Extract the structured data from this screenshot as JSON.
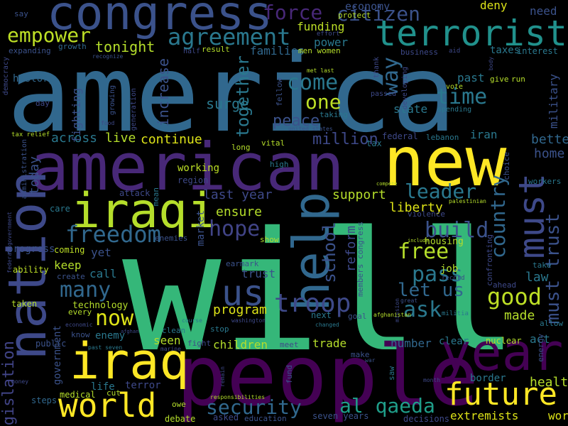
{
  "words": [
    {
      "text": "will",
      "color": "#35b779"
    },
    {
      "text": "america",
      "color": "#31688e"
    },
    {
      "text": "people",
      "color": "#440154"
    },
    {
      "text": "american",
      "color": "#482878"
    },
    {
      "text": "new",
      "color": "#fde725"
    },
    {
      "text": "nation",
      "color": "#3e4989"
    },
    {
      "text": "congress",
      "color": "#3b528b"
    },
    {
      "text": "terrorist",
      "color": "#21918c"
    },
    {
      "text": "year",
      "color": "#440154"
    },
    {
      "text": "iraqi",
      "color": "#b5de2b"
    },
    {
      "text": "iraq",
      "color": "#fde725"
    },
    {
      "text": "help",
      "color": "#31688e"
    },
    {
      "text": "must",
      "color": "#3e4989"
    },
    {
      "text": "world",
      "color": "#fde725"
    },
    {
      "text": "future",
      "color": "#fde725"
    },
    {
      "text": "us",
      "color": "#3b528b"
    },
    {
      "text": "troop",
      "color": "#3e4989"
    },
    {
      "text": "freedom",
      "color": "#31688e"
    },
    {
      "text": "hope",
      "color": "#414487"
    },
    {
      "text": "security",
      "color": "#31688e"
    },
    {
      "text": "al qaeda",
      "color": "#1f9e89"
    },
    {
      "text": "agreement",
      "color": "#2a788e"
    },
    {
      "text": "force",
      "color": "#482878"
    },
    {
      "text": "citizen",
      "color": "#3b528b"
    },
    {
      "text": "empower",
      "color": "#bddf26"
    },
    {
      "text": "come",
      "color": "#2a788e"
    },
    {
      "text": "one",
      "color": "#bddf26"
    },
    {
      "text": "way",
      "color": "#31688e"
    },
    {
      "text": "time",
      "color": "#2a788e"
    },
    {
      "text": "good",
      "color": "#bddf26"
    },
    {
      "text": "ask",
      "color": "#2a788e"
    },
    {
      "text": "now",
      "color": "#dde318"
    },
    {
      "text": "many",
      "color": "#31688e"
    },
    {
      "text": "pass",
      "color": "#2a788e"
    },
    {
      "text": "build",
      "color": "#3b528b"
    },
    {
      "text": "free",
      "color": "#b5de2b"
    },
    {
      "text": "let us",
      "color": "#31688e"
    },
    {
      "text": "leader",
      "color": "#2a788e"
    },
    {
      "text": "country",
      "color": "#31688e"
    },
    {
      "text": "must trust",
      "color": "#3b528b"
    },
    {
      "text": "school",
      "color": "#3b528b"
    },
    {
      "text": "together",
      "color": "#2a788e"
    },
    {
      "text": "legislation",
      "color": "#414487"
    },
    {
      "text": "million",
      "color": "#3e4989"
    },
    {
      "text": "peace",
      "color": "#3b528b"
    },
    {
      "text": "surge",
      "color": "#2a788e"
    },
    {
      "text": "tonight",
      "color": "#b5de2b"
    },
    {
      "text": "across",
      "color": "#2a788e"
    },
    {
      "text": "live",
      "color": "#b5de2b"
    },
    {
      "text": "continue",
      "color": "#dde318"
    },
    {
      "text": "increase",
      "color": "#3b528b"
    },
    {
      "text": "today",
      "color": "#3b528b"
    },
    {
      "text": "last year",
      "color": "#3e4989"
    },
    {
      "text": "support",
      "color": "#b5de2b"
    },
    {
      "text": "liberty",
      "color": "#dde318"
    },
    {
      "text": "ensure",
      "color": "#b5de2b"
    },
    {
      "text": "reform",
      "color": "#3e4989"
    },
    {
      "text": "program",
      "color": "#dde318"
    },
    {
      "text": "better",
      "color": "#31688e"
    },
    {
      "text": "home",
      "color": "#3b528b"
    },
    {
      "text": "health",
      "color": "#b5de2b"
    },
    {
      "text": "made",
      "color": "#b5de2b"
    },
    {
      "text": "law",
      "color": "#2a788e"
    },
    {
      "text": "work",
      "color": "#dde318"
    },
    {
      "text": "extremists",
      "color": "#dde318"
    },
    {
      "text": "trade",
      "color": "#b5de2b"
    },
    {
      "text": "children",
      "color": "#b5de2b"
    },
    {
      "text": "seen",
      "color": "#b5de2b"
    },
    {
      "text": "number",
      "color": "#31688e"
    },
    {
      "text": "call",
      "color": "#2a788e"
    },
    {
      "text": "yet",
      "color": "#3b528b"
    },
    {
      "text": "keep",
      "color": "#b5de2b"
    },
    {
      "text": "enemy",
      "color": "#2a788e"
    },
    {
      "text": "technology",
      "color": "#b5de2b"
    },
    {
      "text": "economy",
      "color": "#3b528b"
    },
    {
      "text": "funding",
      "color": "#bddf26"
    },
    {
      "text": "power",
      "color": "#2a788e"
    },
    {
      "text": "families",
      "color": "#31688e"
    },
    {
      "text": "deny",
      "color": "#dde318"
    },
    {
      "text": "need",
      "color": "#3b528b"
    },
    {
      "text": "past",
      "color": "#2a788e"
    },
    {
      "text": "iran",
      "color": "#2a788e"
    },
    {
      "text": "military",
      "color": "#3b528b"
    },
    {
      "text": "state",
      "color": "#2a788e"
    },
    {
      "text": "taxes",
      "color": "#2a788e"
    },
    {
      "text": "interest",
      "color": "#2a788e"
    },
    {
      "text": "history",
      "color": "#31688e"
    },
    {
      "text": "fighting",
      "color": "#3b528b"
    },
    {
      "text": "working",
      "color": "#bddf26"
    },
    {
      "text": "region",
      "color": "#3e4989"
    },
    {
      "text": "market",
      "color": "#3b528b"
    },
    {
      "text": "trust",
      "color": "#3b528b"
    },
    {
      "text": "government",
      "color": "#3b528b"
    },
    {
      "text": "job",
      "color": "#b5de2b"
    },
    {
      "text": "clear",
      "color": "#2a788e"
    },
    {
      "text": "act",
      "color": "#2a788e"
    },
    {
      "text": "nuclear",
      "color": "#b5de2b"
    },
    {
      "text": "border",
      "color": "#2a788e"
    },
    {
      "text": "asked",
      "color": "#3e4989"
    },
    {
      "text": "education",
      "color": "#3b528b"
    },
    {
      "text": "seven years",
      "color": "#3b528b"
    },
    {
      "text": "decisions",
      "color": "#3e4989"
    },
    {
      "text": "debate",
      "color": "#b5de2b"
    },
    {
      "text": "progress",
      "color": "#3b528b"
    },
    {
      "text": "life",
      "color": "#2a788e"
    },
    {
      "text": "terror",
      "color": "#3e4989"
    },
    {
      "text": "medical",
      "color": "#b5de2b"
    },
    {
      "text": "steps",
      "color": "#31688e"
    },
    {
      "text": "taken",
      "color": "#b5de2b"
    },
    {
      "text": "public",
      "color": "#3b528b"
    },
    {
      "text": "coming",
      "color": "#bddf26"
    },
    {
      "text": "ability",
      "color": "#bddf26"
    },
    {
      "text": "care",
      "color": "#2a788e"
    },
    {
      "text": "attack",
      "color": "#3e4989"
    },
    {
      "text": "mean",
      "color": "#2a788e"
    },
    {
      "text": "enemies",
      "color": "#3b528b"
    },
    {
      "text": "show",
      "color": "#b5de2b"
    },
    {
      "text": "earmark",
      "color": "#3b528b"
    },
    {
      "text": "meet",
      "color": "#3e4989"
    },
    {
      "text": "fight",
      "color": "#3e4989"
    },
    {
      "text": "stop",
      "color": "#2a788e"
    },
    {
      "text": "clean",
      "color": "#2a788e"
    },
    {
      "text": "know",
      "color": "#3b528b"
    },
    {
      "text": "every",
      "color": "#b5de2b"
    },
    {
      "text": "create",
      "color": "#3b528b"
    },
    {
      "text": "housing",
      "color": "#b5de2b"
    },
    {
      "text": "confronting",
      "color": "#3e4989"
    },
    {
      "text": "violence",
      "color": "#3e4989"
    },
    {
      "text": "federal",
      "color": "#3e4989"
    },
    {
      "text": "lebanon",
      "color": "#2a788e"
    },
    {
      "text": "tax",
      "color": "#2a788e"
    },
    {
      "text": "vital",
      "color": "#b5de2b"
    },
    {
      "text": "long",
      "color": "#b5de2b"
    },
    {
      "text": "high",
      "color": "#2a788e"
    },
    {
      "text": "choice",
      "color": "#3b528b"
    },
    {
      "text": "workers",
      "color": "#2a788e"
    },
    {
      "text": "energy",
      "color": "#3b528b"
    },
    {
      "text": "take",
      "color": "#2a788e"
    },
    {
      "text": "ahead",
      "color": "#3e4989"
    },
    {
      "text": "allow",
      "color": "#2a788e"
    },
    {
      "text": "next",
      "color": "#2a788e"
    },
    {
      "text": "goal",
      "color": "#3b528b"
    },
    {
      "text": "members congress",
      "color": "#3b528b"
    },
    {
      "text": "make",
      "color": "#3b528b"
    },
    {
      "text": "fund",
      "color": "#3b528b"
    },
    {
      "text": "saw",
      "color": "#2a788e"
    },
    {
      "text": "owe",
      "color": "#b5de2b"
    },
    {
      "text": "cut",
      "color": "#b5de2b"
    },
    {
      "text": "protect",
      "color": "#b5de2b"
    },
    {
      "text": "men women",
      "color": "#b5de2b"
    },
    {
      "text": "result",
      "color": "#b5de2b"
    },
    {
      "text": "half",
      "color": "#3e4989"
    },
    {
      "text": "growth",
      "color": "#31688e"
    },
    {
      "text": "expanding",
      "color": "#3b528b"
    },
    {
      "text": "democracy",
      "color": "#3e4989"
    },
    {
      "text": "say",
      "color": "#3b528b"
    },
    {
      "text": "effort",
      "color": "#3e4989"
    },
    {
      "text": "business",
      "color": "#3e4989"
    },
    {
      "text": "aid",
      "color": "#3e4989"
    },
    {
      "text": "give",
      "color": "#b5de2b"
    },
    {
      "text": "run",
      "color": "#b5de2b"
    },
    {
      "text": "vote",
      "color": "#b5de2b"
    },
    {
      "text": "thank",
      "color": "#3e4989"
    },
    {
      "text": "passed",
      "color": "#3e4989"
    },
    {
      "text": "developing",
      "color": "#3e4989"
    },
    {
      "text": "spending",
      "color": "#2a788e"
    },
    {
      "text": "taking",
      "color": "#2a788e"
    },
    {
      "text": "united states",
      "color": "#3b528b"
    },
    {
      "text": "fellow",
      "color": "#3b528b"
    },
    {
      "text": "met last",
      "color": "#b5de2b"
    },
    {
      "text": "generation",
      "color": "#3e4989"
    },
    {
      "text": "growing",
      "color": "#3b528b"
    },
    {
      "text": "day",
      "color": "#3e4989"
    },
    {
      "text": "food",
      "color": "#3e4989"
    },
    {
      "text": "tax relief",
      "color": "#b5de2b"
    },
    {
      "text": "administration",
      "color": "#3b528b"
    },
    {
      "text": "federal government",
      "color": "#3e4989"
    },
    {
      "text": "economic",
      "color": "#3e4989"
    },
    {
      "text": "past seven",
      "color": "#2a788e"
    },
    {
      "text": "marine",
      "color": "#3e4989"
    },
    {
      "text": "money",
      "color": "#3e4989"
    },
    {
      "text": "responsibilities",
      "color": "#b5de2b"
    },
    {
      "text": "remain",
      "color": "#3e4989"
    },
    {
      "text": "washington",
      "color": "#3e4989"
    },
    {
      "text": "course",
      "color": "#2a788e"
    },
    {
      "text": "changed",
      "color": "#2a788e"
    },
    {
      "text": "war",
      "color": "#3b528b"
    },
    {
      "text": "mission",
      "color": "#3e4989"
    },
    {
      "text": "great",
      "color": "#3b528b"
    },
    {
      "text": "militia",
      "color": "#2a788e"
    },
    {
      "text": "record",
      "color": "#3e4989"
    },
    {
      "text": "palestinian",
      "color": "#b5de2b"
    },
    {
      "text": "compete",
      "color": "#b5de2b"
    },
    {
      "text": "include",
      "color": "#b5de2b"
    },
    {
      "text": "afghanistan",
      "color": "#b5de2b"
    },
    {
      "text": "month",
      "color": "#3e4989"
    },
    {
      "text": "afghan",
      "color": "#3e4989"
    },
    {
      "text": "recognize",
      "color": "#3b528b"
    },
    {
      "text": "body",
      "color": "#3e4989"
    }
  ]
}
